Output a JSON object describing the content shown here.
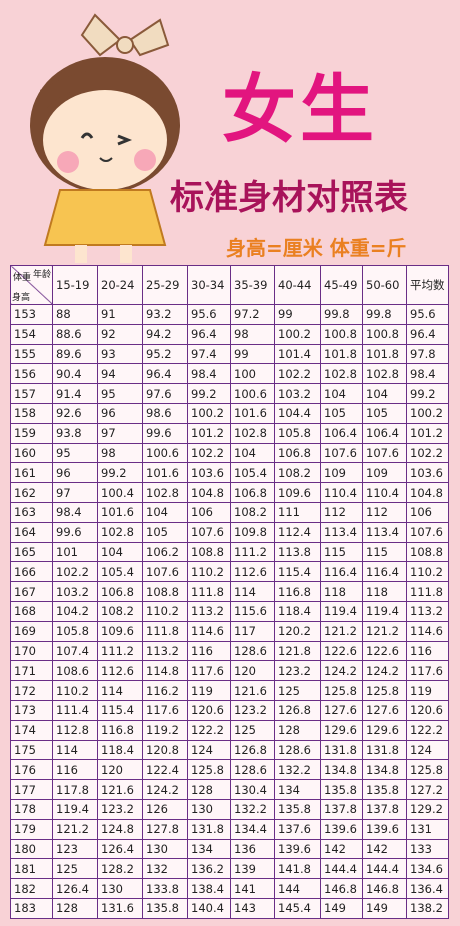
{
  "header": {
    "title": "女生",
    "subtitle": "标准身材对照表",
    "units": "身高=厘米 体重=斤"
  },
  "table": {
    "corner": [
      "体重",
      "年龄",
      "身高"
    ],
    "columns": [
      "15-19",
      "20-24",
      "25-29",
      "30-34",
      "35-39",
      "40-44",
      "45-49",
      "50-60",
      "平均数"
    ],
    "rows": [
      [
        153,
        88,
        91,
        93.2,
        95.6,
        97.2,
        99,
        99.8,
        99.8,
        95.6
      ],
      [
        154,
        88.6,
        92,
        94.2,
        96.4,
        98,
        100.2,
        100.8,
        100.8,
        96.4
      ],
      [
        155,
        89.6,
        93,
        95.2,
        97.4,
        99,
        101.4,
        101.8,
        101.8,
        97.8
      ],
      [
        156,
        90.4,
        94,
        96.4,
        98.4,
        100,
        102.2,
        102.8,
        102.8,
        98.4
      ],
      [
        157,
        91.4,
        95,
        97.6,
        99.2,
        100.6,
        103.2,
        104,
        104,
        99.2
      ],
      [
        158,
        92.6,
        96,
        98.6,
        100.2,
        101.6,
        104.4,
        105,
        105,
        100.2
      ],
      [
        159,
        93.8,
        97,
        99.6,
        101.2,
        102.8,
        105.8,
        106.4,
        106.4,
        101.2
      ],
      [
        160,
        95,
        98,
        100.6,
        102.2,
        104,
        106.8,
        107.6,
        107.6,
        102.2
      ],
      [
        161,
        96,
        99.2,
        101.6,
        103.6,
        105.4,
        108.2,
        109,
        109,
        103.6
      ],
      [
        162,
        97,
        100.4,
        102.8,
        104.8,
        106.8,
        109.6,
        110.4,
        110.4,
        104.8
      ],
      [
        163,
        98.4,
        101.6,
        104,
        106,
        108.2,
        111,
        112,
        112,
        106
      ],
      [
        164,
        99.6,
        102.8,
        105,
        107.6,
        109.8,
        112.4,
        113.4,
        113.4,
        107.6
      ],
      [
        165,
        101,
        104,
        106.2,
        108.8,
        111.2,
        113.8,
        115,
        115,
        108.8
      ],
      [
        166,
        102.2,
        105.4,
        107.6,
        110.2,
        112.6,
        115.4,
        116.4,
        116.4,
        110.2
      ],
      [
        167,
        103.2,
        106.8,
        108.8,
        111.8,
        114,
        116.8,
        118,
        118,
        111.8
      ],
      [
        168,
        104.2,
        108.2,
        110.2,
        113.2,
        115.6,
        118.4,
        119.4,
        119.4,
        113.2
      ],
      [
        169,
        105.8,
        109.6,
        111.8,
        114.6,
        117,
        120.2,
        121.2,
        121.2,
        114.6
      ],
      [
        170,
        107.4,
        111.2,
        113.2,
        116,
        128.6,
        121.8,
        122.6,
        122.6,
        116
      ],
      [
        171,
        108.6,
        112.6,
        114.8,
        117.6,
        120,
        123.2,
        124.2,
        124.2,
        117.6
      ],
      [
        172,
        110.2,
        114,
        116.2,
        119,
        121.6,
        125,
        125.8,
        125.8,
        119
      ],
      [
        173,
        111.4,
        115.4,
        117.6,
        120.6,
        123.2,
        126.8,
        127.6,
        127.6,
        120.6
      ],
      [
        174,
        112.8,
        116.8,
        119.2,
        122.2,
        125,
        128,
        129.6,
        129.6,
        122.2
      ],
      [
        175,
        114,
        118.4,
        120.8,
        124,
        126.8,
        128.6,
        131.8,
        131.8,
        124
      ],
      [
        176,
        116,
        120,
        122.4,
        125.8,
        128.6,
        132.2,
        134.8,
        134.8,
        125.8
      ],
      [
        177,
        117.8,
        121.6,
        124.2,
        128,
        130.4,
        134,
        135.8,
        135.8,
        127.2
      ],
      [
        178,
        119.4,
        123.2,
        126,
        130,
        132.2,
        135.8,
        137.8,
        137.8,
        129.2
      ],
      [
        179,
        121.2,
        124.8,
        127.8,
        131.8,
        134.4,
        137.6,
        139.6,
        139.6,
        131
      ],
      [
        180,
        123,
        126.4,
        130,
        134,
        136,
        139.6,
        142,
        142,
        133
      ],
      [
        181,
        125,
        128.2,
        132,
        136.2,
        139,
        141.8,
        144.4,
        144.4,
        134.6
      ],
      [
        182,
        126.4,
        130,
        133.8,
        138.4,
        141,
        144,
        146.8,
        146.8,
        136.4
      ],
      [
        183,
        128,
        131.6,
        135.8,
        140.4,
        143,
        145.4,
        149,
        149,
        138.2
      ]
    ]
  }
}
